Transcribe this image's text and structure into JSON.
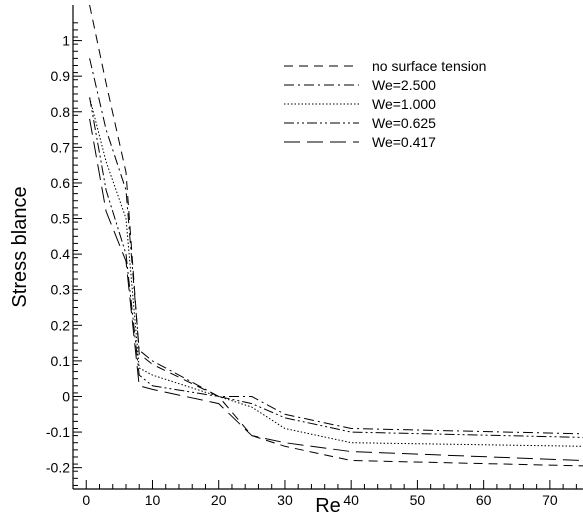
{
  "chart_data": {
    "type": "line",
    "title": "",
    "xlabel": "Re",
    "ylabel": "Stress blance",
    "xlim": [
      -2,
      75
    ],
    "ylim": [
      -0.26,
      1.1
    ],
    "x_ticks": [
      0,
      10,
      20,
      30,
      40,
      50,
      60,
      70
    ],
    "x_tick_labels": [
      "0",
      "10",
      "20",
      "30",
      "40",
      "50",
      "60",
      "70"
    ],
    "y_ticks": [
      -0.2,
      -0.1,
      0,
      0.1,
      0.2,
      0.3,
      0.4,
      0.5,
      0.6,
      0.7,
      0.8,
      0.9,
      1.0
    ],
    "y_tick_labels": [
      "-0.2",
      "-0.1",
      "0",
      "0.1",
      "0.2",
      "0.3",
      "0.4",
      "0.5",
      "0.6",
      "0.7",
      "0.8",
      "0.9",
      "1"
    ],
    "grid": false,
    "legend_position": "top-right",
    "series": [
      {
        "name": "no surface tension",
        "dash": "dashed",
        "x": [
          0.5,
          3,
          6,
          8,
          10,
          20,
          25,
          30,
          40,
          75
        ],
        "y": [
          1.1,
          0.88,
          0.63,
          0.12,
          0.09,
          0.0,
          -0.11,
          -0.14,
          -0.18,
          -0.195
        ]
      },
      {
        "name": "We=2.500",
        "dash": "dashdot",
        "x": [
          0.5,
          3,
          6,
          8,
          10,
          20,
          25,
          30,
          40,
          75
        ],
        "y": [
          0.95,
          0.75,
          0.58,
          0.13,
          0.1,
          0.0,
          0.0,
          -0.05,
          -0.09,
          -0.105
        ]
      },
      {
        "name": "We=1.000",
        "dash": "dotted",
        "x": [
          0.5,
          3,
          6,
          8,
          10,
          20,
          25,
          30,
          40,
          75
        ],
        "y": [
          0.84,
          0.66,
          0.5,
          0.08,
          0.06,
          0.0,
          -0.03,
          -0.09,
          -0.13,
          -0.14
        ]
      },
      {
        "name": "We=0.625",
        "dash": "dashdotdot",
        "x": [
          0.5,
          3,
          6,
          8,
          10,
          20,
          25,
          30,
          40,
          75
        ],
        "y": [
          0.84,
          0.58,
          0.4,
          0.06,
          0.03,
          0.0,
          -0.02,
          -0.06,
          -0.1,
          -0.115
        ]
      },
      {
        "name": "We=0.417",
        "dash": "longdash",
        "x": [
          0.5,
          3,
          6,
          8,
          10,
          20,
          25,
          30,
          40,
          75
        ],
        "y": [
          0.78,
          0.52,
          0.38,
          0.03,
          0.02,
          -0.02,
          -0.11,
          -0.13,
          -0.155,
          -0.18
        ]
      }
    ]
  }
}
